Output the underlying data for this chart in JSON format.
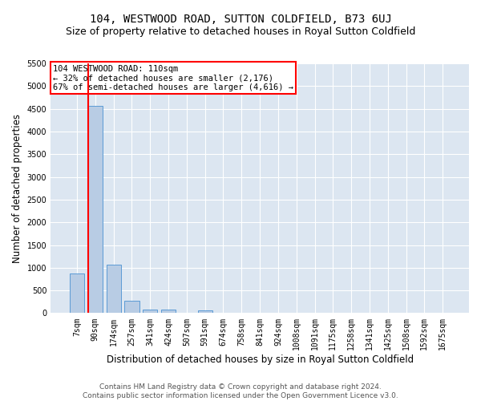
{
  "title": "104, WESTWOOD ROAD, SUTTON COLDFIELD, B73 6UJ",
  "subtitle": "Size of property relative to detached houses in Royal Sutton Coldfield",
  "xlabel": "Distribution of detached houses by size in Royal Sutton Coldfield",
  "ylabel": "Number of detached properties",
  "categories": [
    "7sqm",
    "90sqm",
    "174sqm",
    "257sqm",
    "341sqm",
    "424sqm",
    "507sqm",
    "591sqm",
    "674sqm",
    "758sqm",
    "841sqm",
    "924sqm",
    "1008sqm",
    "1091sqm",
    "1175sqm",
    "1258sqm",
    "1341sqm",
    "1425sqm",
    "1508sqm",
    "1592sqm",
    "1675sqm"
  ],
  "values": [
    880,
    4560,
    1060,
    275,
    85,
    80,
    0,
    55,
    0,
    0,
    0,
    0,
    0,
    0,
    0,
    0,
    0,
    0,
    0,
    0,
    0
  ],
  "bar_color": "#b8cce4",
  "bar_edge_color": "#5b9bd5",
  "background_color": "#dce6f1",
  "grid_color": "#ffffff",
  "annotation_line1": "104 WESTWOOD ROAD: 110sqm",
  "annotation_line2": "← 32% of detached houses are smaller (2,176)",
  "annotation_line3": "67% of semi-detached houses are larger (4,616) →",
  "annotation_box_color": "#ffffff",
  "annotation_box_edge_color": "#ff0000",
  "red_line_x": 0.6,
  "ylim": [
    0,
    5500
  ],
  "yticks": [
    0,
    500,
    1000,
    1500,
    2000,
    2500,
    3000,
    3500,
    4000,
    4500,
    5000,
    5500
  ],
  "footer_line1": "Contains HM Land Registry data © Crown copyright and database right 2024.",
  "footer_line2": "Contains public sector information licensed under the Open Government Licence v3.0.",
  "title_fontsize": 10,
  "subtitle_fontsize": 9,
  "axis_label_fontsize": 8.5,
  "tick_fontsize": 7,
  "annotation_fontsize": 7.5,
  "footer_fontsize": 6.5
}
